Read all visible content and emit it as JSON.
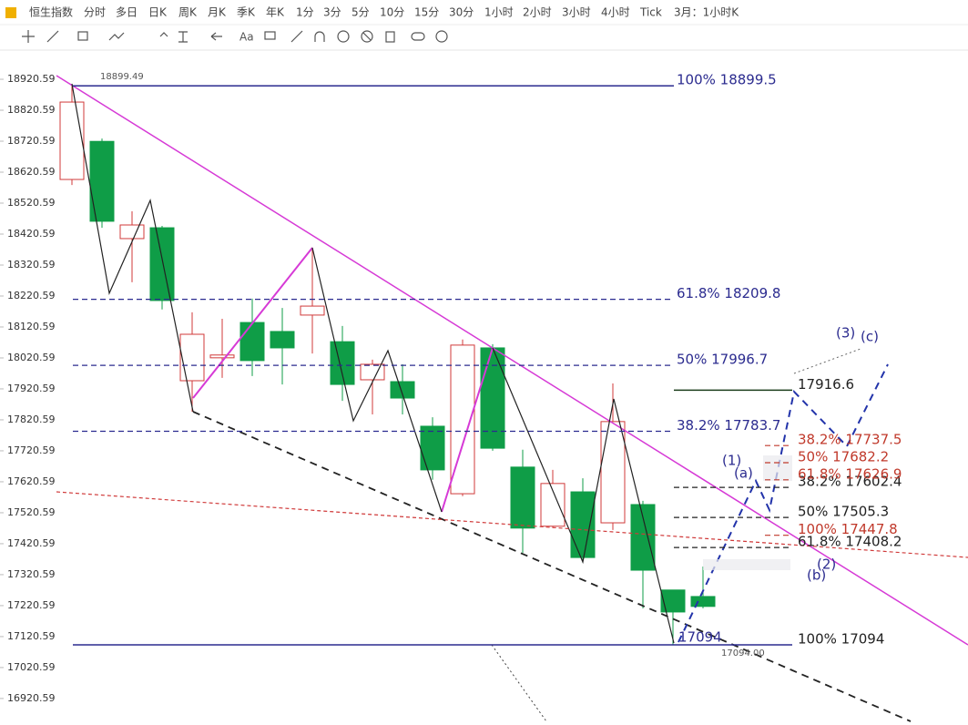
{
  "toolbar": {
    "tabs": [
      "恒生指数",
      "分时",
      "多日",
      "日K",
      "周K",
      "月K",
      "季K",
      "年K",
      "1分",
      "3分",
      "5分",
      "10分",
      "15分",
      "30分",
      "1小时",
      "2小时",
      "3小时",
      "4小时",
      "Tick",
      "3月：1小时K"
    ],
    "active_index": 3
  },
  "chart_data": {
    "type": "candlestick",
    "up_color": "#d03a3a",
    "down_color": "#0f9d47",
    "open": [
      18597,
      18720,
      18406,
      18441,
      17947,
      18021,
      18135,
      18106,
      18159,
      18073,
      17950,
      17944,
      17800,
      17582,
      18053,
      17668,
      17477,
      17588,
      17488,
      17547,
      17271,
      17250
    ],
    "high": [
      18899.49,
      18729,
      18494,
      18447,
      18168,
      18147,
      18212,
      18182,
      18377,
      18124,
      18015,
      18000,
      17829,
      18080,
      18065,
      17724,
      17659,
      17632,
      17938,
      17559,
      17271,
      17347
    ],
    "low": [
      18579,
      18441,
      18265,
      18177,
      17847,
      17956,
      17962,
      17935,
      18035,
      17882,
      17838,
      17838,
      17627,
      17574,
      17721,
      17391,
      17471,
      17359,
      17465,
      17212,
      17094,
      17212
    ],
    "close": [
      18847,
      18462,
      18450,
      18206,
      18097,
      18030,
      18012,
      18053,
      18188,
      17935,
      18000,
      17891,
      17659,
      18062,
      17729,
      17471,
      17615,
      17376,
      17815,
      17335,
      17200,
      17218
    ],
    "ylim": [
      16835,
      19006
    ],
    "yticks": [
      18920.59,
      18820.59,
      18720.59,
      18620.59,
      18520.59,
      18420.59,
      18320.59,
      18220.59,
      18120.59,
      18020.59,
      17920.59,
      17820.59,
      17720.59,
      17620.59,
      17520.59,
      17420.59,
      17320.59,
      17220.59,
      17120.59,
      17020.59,
      16920.59
    ],
    "levels": [
      {
        "value": 18899.5,
        "label": "100% 18899.5",
        "color": "#2b2b8f",
        "label_color": "#2b2b8f",
        "style": "solid"
      },
      {
        "value": 18209.8,
        "label": "61.8% 18209.8",
        "color": "#2b2b8f",
        "label_color": "#2b2b8f",
        "style": "dashed"
      },
      {
        "value": 17996.7,
        "label": "50% 17996.7",
        "color": "#2b2b8f",
        "label_color": "#2b2b8f",
        "style": "dashed"
      },
      {
        "value": 17783.7,
        "label": "38.2% 17783.7",
        "color": "#2b2b8f",
        "label_color": "#2b2b8f",
        "style": "dashed"
      },
      {
        "value": 17094,
        "label": "100% 17094",
        "color": "#2b2b8f",
        "label_color": "#222222",
        "style": "solid"
      },
      {
        "value": 17916.6,
        "label": "17916.6",
        "color": "#1a3d1a",
        "label_color": "#222222",
        "style": "solid"
      },
      {
        "value": 17602.4,
        "label": "38.2% 17602.4",
        "color": "#222222",
        "label_color": "#222222",
        "style": "dashed"
      },
      {
        "value": 17505.3,
        "label": "50% 17505.3",
        "color": "#222222",
        "label_color": "#222222",
        "style": "dashed"
      },
      {
        "value": 17408.2,
        "label": "61.8% 17408.2",
        "color": "#222222",
        "label_color": "#222222",
        "style": "dashed"
      },
      {
        "value": 17737.5,
        "label": "38.2% 17737.5",
        "color": "#c0392b",
        "label_color": "#c0392b",
        "style": "dashed"
      },
      {
        "value": 17682.2,
        "label": "50% 17682.2",
        "color": "#c0392b",
        "label_color": "#c0392b",
        "style": "dashed"
      },
      {
        "value": 17626.9,
        "label": "61.8% 17626.9",
        "color": "#c0392b",
        "label_color": "#c0392b",
        "style": "dashed"
      },
      {
        "value": 17447.8,
        "label": "100% 17447.8",
        "color": "#c0392b",
        "label_color": "#c0392b",
        "style": "dashed"
      }
    ],
    "markers": [
      {
        "value": 18899.49
      },
      {
        "value": 17094,
        "label": "17094.00"
      }
    ],
    "annotations": [
      "(1)",
      "(2)",
      "(3)",
      "(a)",
      "(b)",
      "(c)",
      "17094"
    ]
  }
}
